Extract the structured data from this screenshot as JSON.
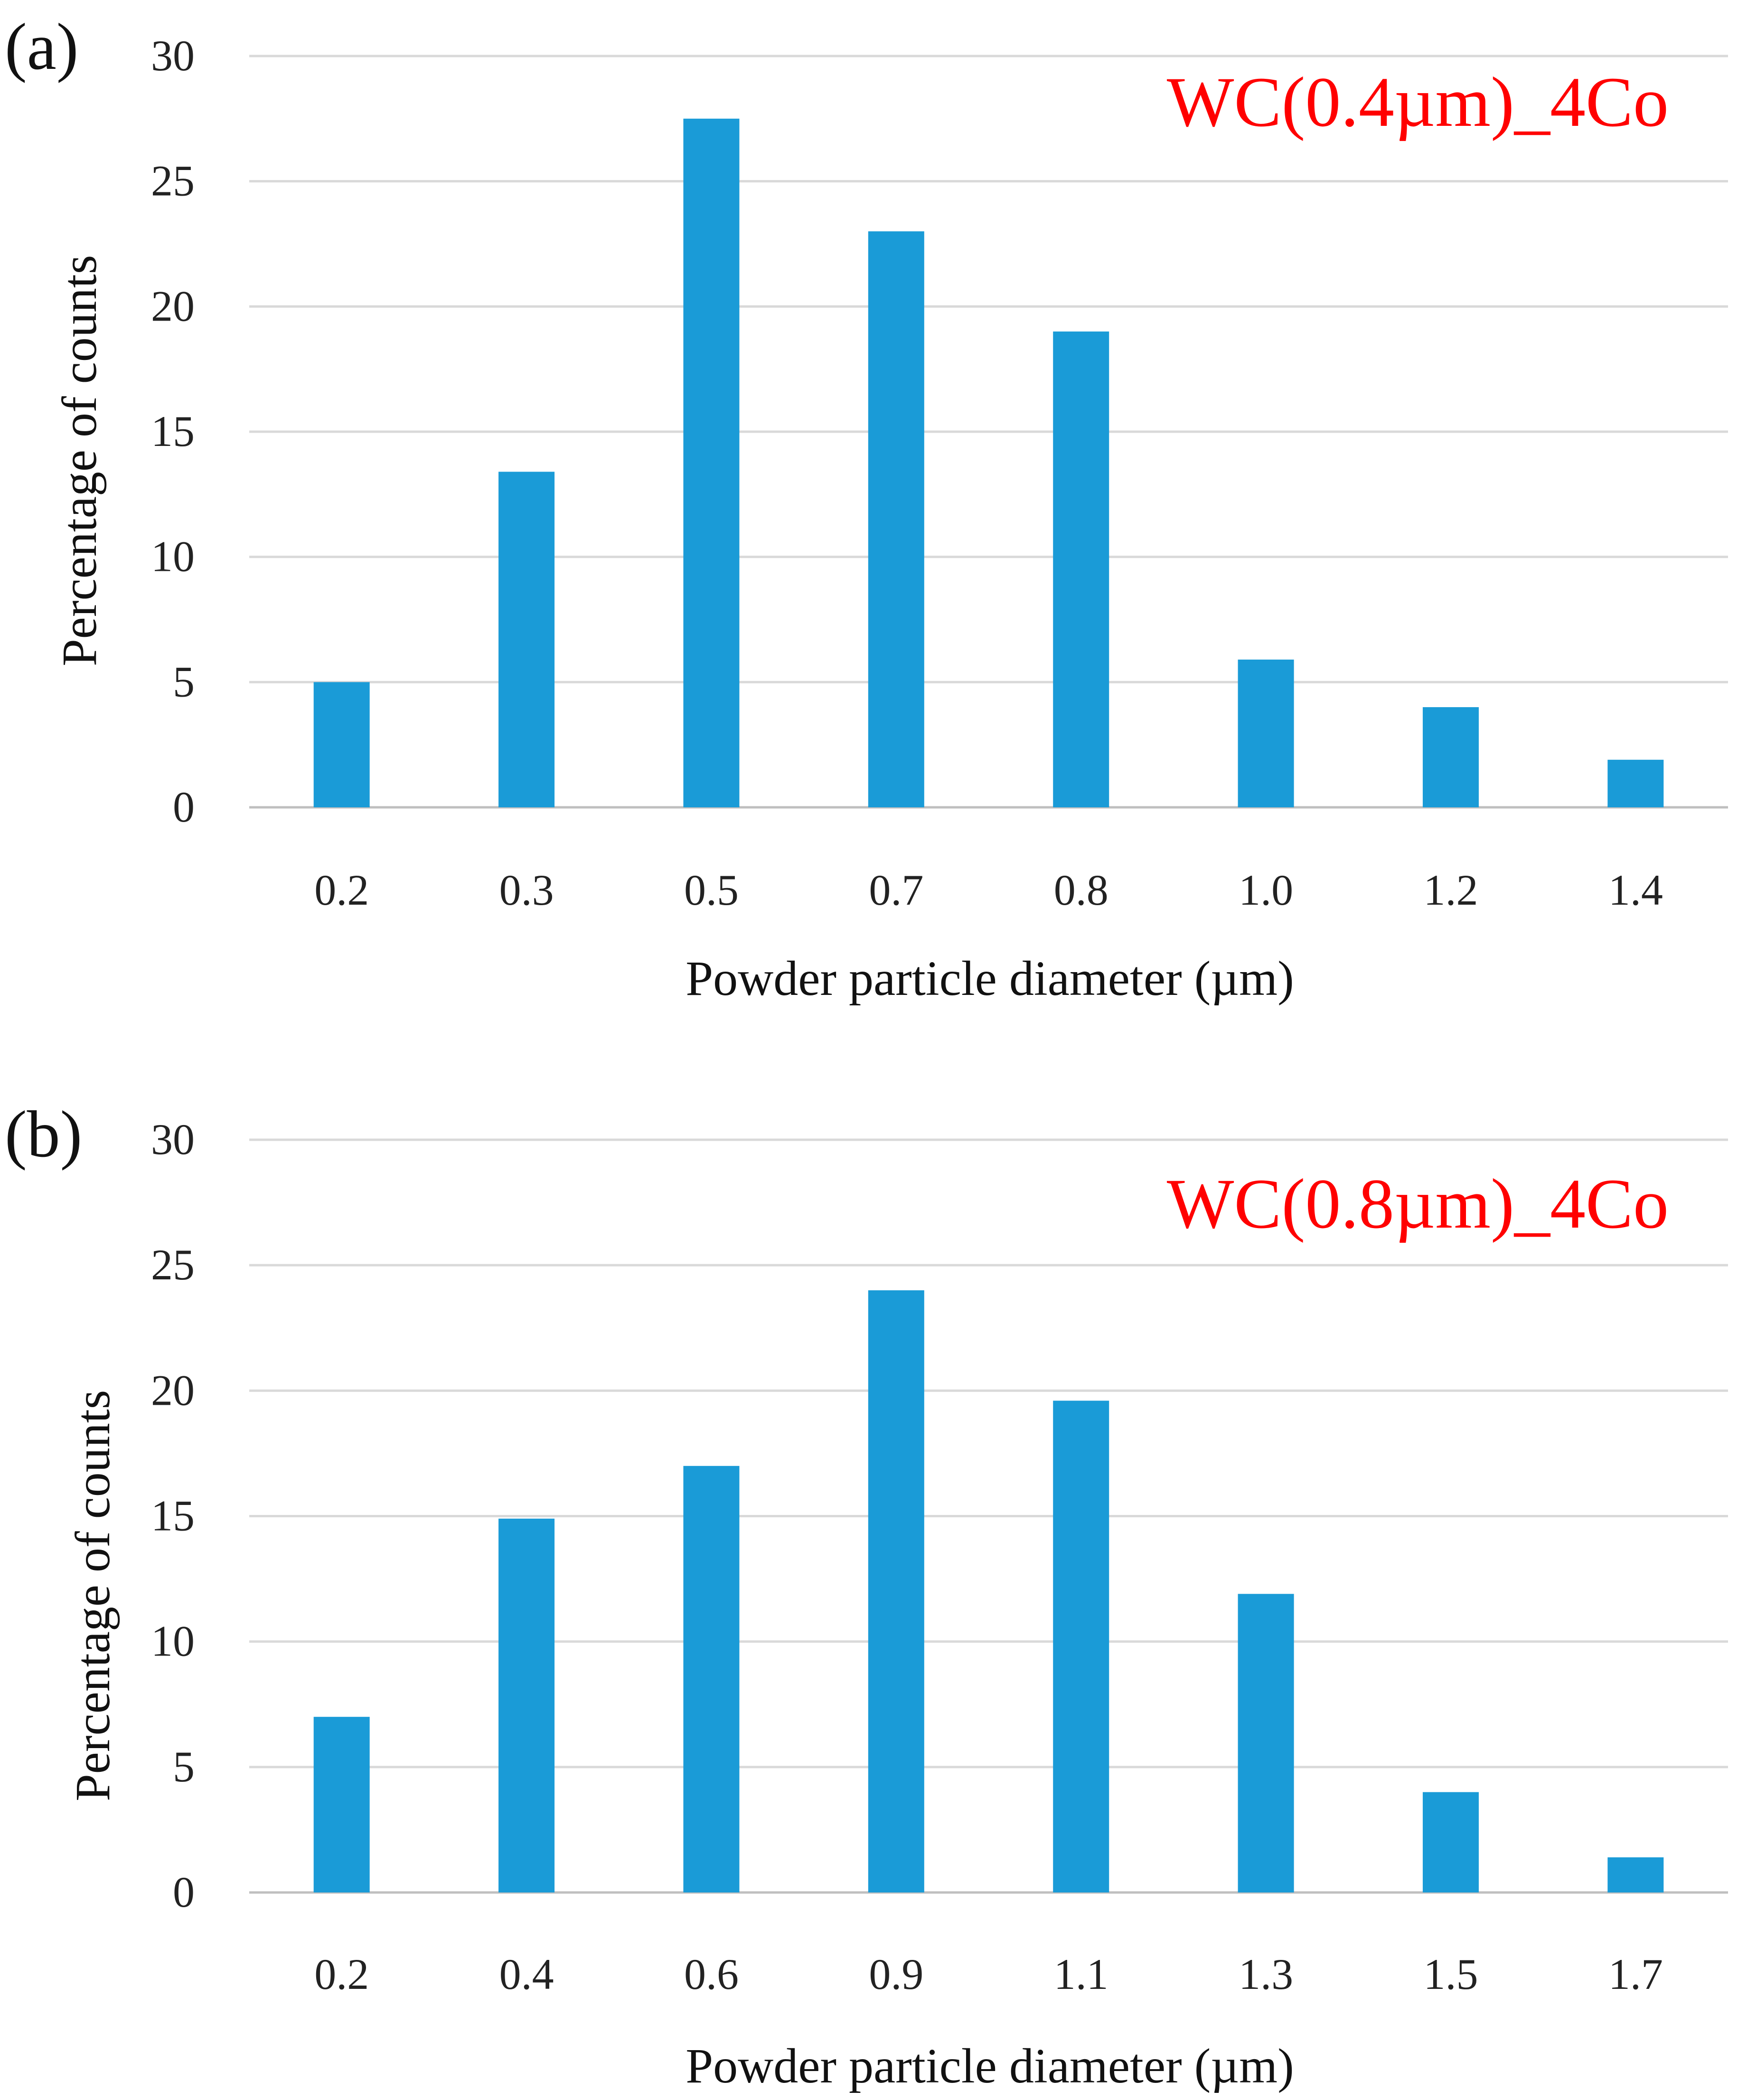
{
  "colors": {
    "bar": "#1a9bd7",
    "series_label": "#ff0000"
  },
  "chart_data": [
    {
      "type": "bar",
      "panel_label": "(a)",
      "series_label": "WC(0.4µm)_4Co",
      "categories": [
        "0.2",
        "0.3",
        "0.5",
        "0.7",
        "0.8",
        "1.0",
        "1.2",
        "1.4"
      ],
      "values": [
        5,
        13.4,
        27.5,
        23,
        19,
        5.9,
        4,
        1.9
      ],
      "yticks": [
        "0",
        "5",
        "10",
        "15",
        "20",
        "25",
        "30"
      ],
      "ylim": [
        0,
        30
      ],
      "xlabel": "Powder particle diameter (µm)",
      "ylabel": "Percentage of counts",
      "grid": true
    },
    {
      "type": "bar",
      "panel_label": "(b)",
      "series_label": "WC(0.8µm)_4Co",
      "categories": [
        "0.2",
        "0.4",
        "0.6",
        "0.9",
        "1.1",
        "1.3",
        "1.5",
        "1.7"
      ],
      "values": [
        7,
        14.9,
        17,
        24,
        19.6,
        11.9,
        4,
        1.4
      ],
      "yticks": [
        "0",
        "5",
        "10",
        "15",
        "20",
        "25",
        "30"
      ],
      "ylim": [
        0,
        30
      ],
      "xlabel": "Powder particle diameter (µm)",
      "ylabel": "Percentage of counts",
      "grid": true
    }
  ]
}
